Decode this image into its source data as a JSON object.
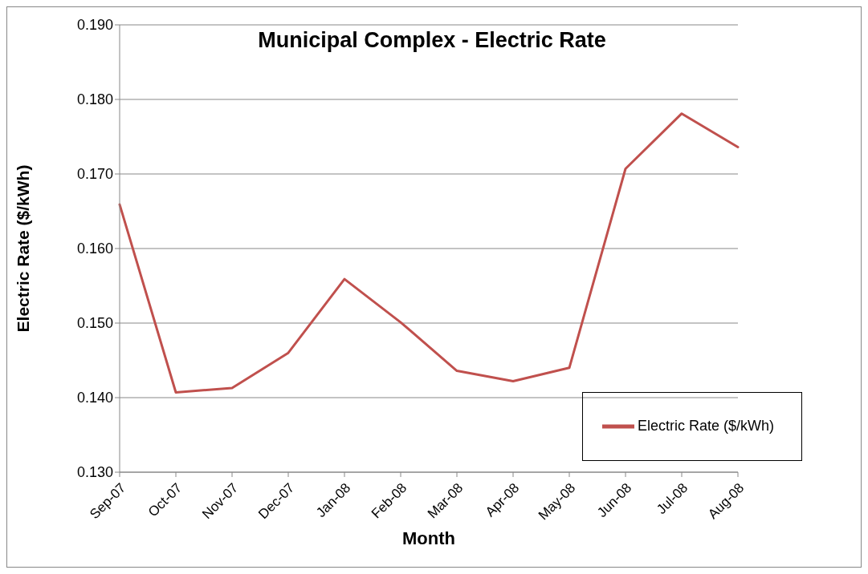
{
  "chart_data": {
    "type": "line",
    "title": "Municipal Complex - Electric Rate",
    "xlabel": "Month",
    "ylabel": "Electric Rate ($/kWh)",
    "categories": [
      "Sep-07",
      "Oct-07",
      "Nov-07",
      "Dec-07",
      "Jan-08",
      "Feb-08",
      "Mar-08",
      "Apr-08",
      "May-08",
      "Jun-08",
      "Jul-08",
      "Aug-08"
    ],
    "series": [
      {
        "name": "Electric Rate ($/kWh)",
        "color": "#c0504d",
        "values": [
          0.1659,
          0.1407,
          0.1413,
          0.146,
          0.1559,
          0.1501,
          0.1436,
          0.1422,
          0.144,
          0.1707,
          0.1781,
          0.1736
        ]
      }
    ],
    "ylim": [
      0.13,
      0.19
    ],
    "yticks": [
      {
        "value": 0.13,
        "label": "0.130"
      },
      {
        "value": 0.14,
        "label": "0.140"
      },
      {
        "value": 0.15,
        "label": "0.150"
      },
      {
        "value": 0.16,
        "label": "0.160"
      },
      {
        "value": 0.17,
        "label": "0.170"
      },
      {
        "value": 0.18,
        "label": "0.180"
      },
      {
        "value": 0.19,
        "label": "0.190"
      }
    ],
    "grid": "y",
    "legend": "bottom right",
    "marker": "none",
    "line_style": "solid"
  }
}
